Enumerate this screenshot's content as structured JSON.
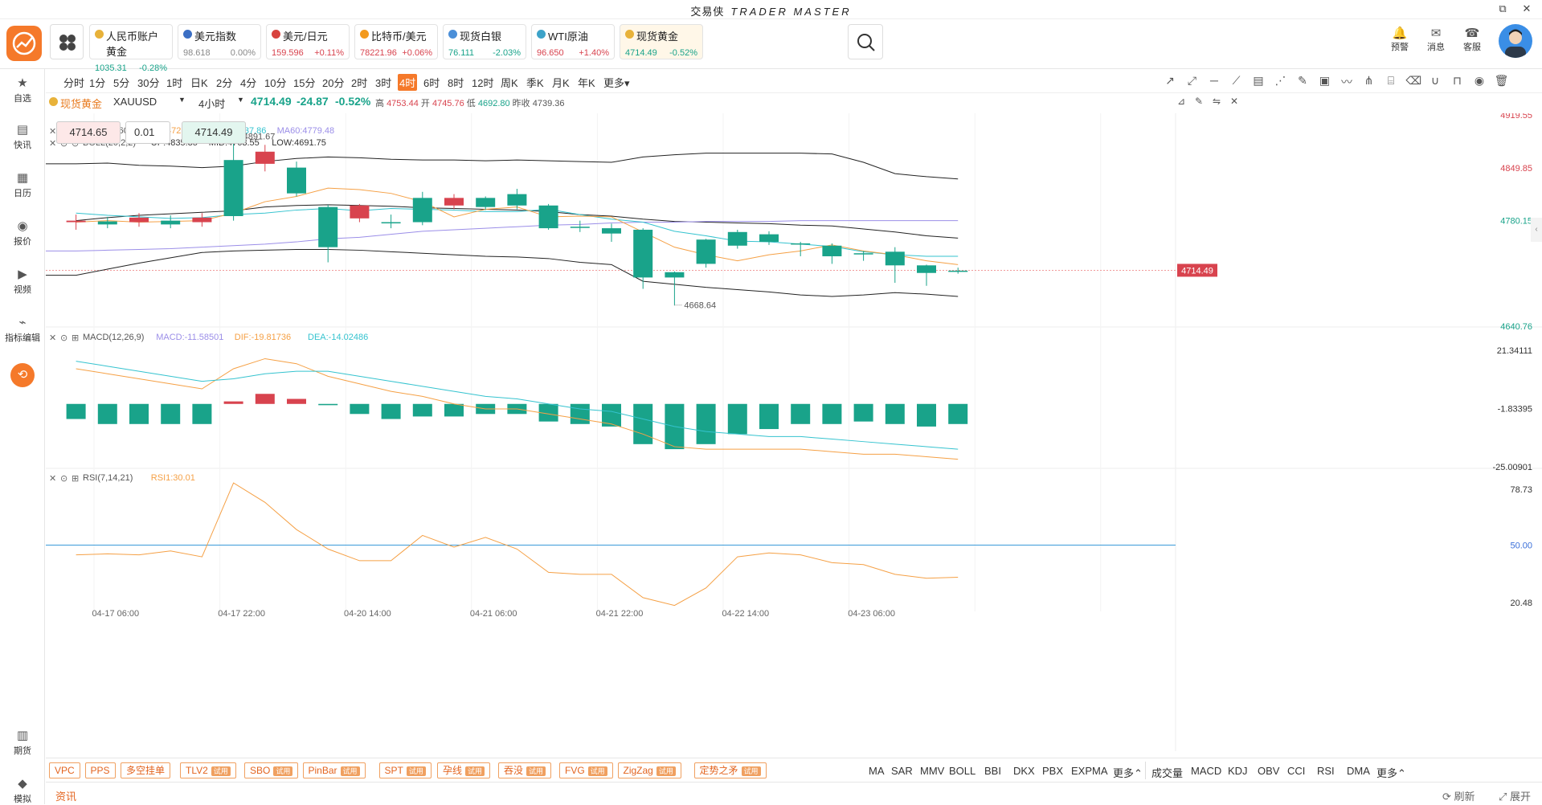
{
  "app": {
    "title": "交易侠",
    "brand": "TRADER MASTER"
  },
  "window": {
    "restore": "⧉",
    "close": "✕"
  },
  "tickers": [
    {
      "name": "人民币账户黄金",
      "price": "1035.31",
      "change": "-0.28%",
      "color": "#e8b23a",
      "dir": "down"
    },
    {
      "name": "美元指数",
      "price": "98.618",
      "change": "0.00%",
      "color": "#3b6fc4",
      "dir": "flat"
    },
    {
      "name": "美元/日元",
      "price": "159.596",
      "change": "+0.11%",
      "color": "#d8433f",
      "dir": "up"
    },
    {
      "name": "比特币/美元",
      "price": "78221.96",
      "change": "+0.06%",
      "color": "#f39a1e",
      "dir": "up"
    },
    {
      "name": "现货白银",
      "price": "76.111",
      "change": "-2.03%",
      "color": "#4b8fd8",
      "dir": "down"
    },
    {
      "name": "WTI原油",
      "price": "96.650",
      "change": "+1.40%",
      "color": "#3da3c9",
      "dir": "up"
    },
    {
      "name": "现货黄金",
      "price": "4714.49",
      "change": "-0.52%",
      "color": "#e8b23a",
      "dir": "down"
    }
  ],
  "right_tools": [
    {
      "label": "预警",
      "icon": "🔔"
    },
    {
      "label": "消息",
      "icon": "✉"
    },
    {
      "label": "客服",
      "icon": "☎"
    }
  ],
  "left_nav": [
    {
      "label": "自选",
      "icon": "★"
    },
    {
      "label": "快讯",
      "icon": "▤"
    },
    {
      "label": "日历",
      "icon": "▦"
    },
    {
      "label": "报价",
      "icon": "◉"
    },
    {
      "label": "视频",
      "icon": "▶"
    },
    {
      "label": "指标编辑",
      "icon": "⌁"
    },
    {
      "label": "复盘",
      "icon": "⟲"
    },
    {
      "label": "期货",
      "icon": "▥"
    },
    {
      "label": "模拟",
      "icon": "◆"
    }
  ],
  "timeframes": [
    "分时",
    "1分",
    "5分",
    "30分",
    "1时",
    "日K",
    "2分",
    "4分",
    "10分",
    "15分",
    "20分",
    "2时",
    "3时",
    "4时",
    "6时",
    "8时",
    "12时",
    "周K",
    "季K",
    "月K",
    "年K",
    "更多▾"
  ],
  "active_timeframe": "4时",
  "symbol": {
    "name": "现货黄金",
    "code": "XAUUSD",
    "period": "4小时",
    "price": "4714.49",
    "change": "-24.87",
    "pct": "-0.52%",
    "hl": "高",
    "high": "4753.44",
    "ol": "开",
    "open": "4745.76",
    "ll": "低",
    "low": "4692.80",
    "pl": "昨收",
    "prev": "4739.36"
  },
  "order": {
    "bid": "4714.65",
    "lot": "0.01",
    "ask": "4714.49"
  },
  "ind_main": {
    "ma": "MA(5,10,60)",
    "ma5": "MA5:4725.54",
    "ma10": "MA10:4737.86",
    "ma60": "MA60:4779.48",
    "boll": "BOLL(20,2,2)",
    "up": "UP:4835.35",
    "mid": "MID:4763.55",
    "low": "LOW:4691.75"
  },
  "ind_macd": {
    "name": "MACD(12,26,9)",
    "macd": "MACD:-11.58501",
    "dif": "DIF:-19.81736",
    "dea": "DEA:-14.02486"
  },
  "ind_rsi": {
    "name": "RSI(7,14,21)",
    "rsi1": "RSI1:30.01"
  },
  "annotations": {
    "hi": "4891.67",
    "lo": "4668.64"
  },
  "price_axis": [
    "4919.55",
    "4849.85",
    "4780.15",
    "4640.76"
  ],
  "macd_axis": [
    "21.34111",
    "-1.83395",
    "-25.00901"
  ],
  "rsi_axis": [
    "78.73",
    "50.00",
    "20.48"
  ],
  "current_price_label": "4714.49",
  "colors": {
    "up": "#d8434e",
    "down": "#19a38a",
    "ma5": "#f5a045",
    "ma10": "#35c3cf",
    "ma60": "#9b8ee8",
    "boll": "#222222",
    "accent": "#f5792a"
  },
  "x_labels": [
    "04-17 06:00",
    "04-17 22:00",
    "04-20 14:00",
    "04-21 06:00",
    "04-21 22:00",
    "04-22 14:00",
    "04-23 06:00"
  ],
  "candles": [
    [
      4778,
      4780,
      4768,
      4788
    ],
    [
      4779,
      4775,
      4770,
      4785
    ],
    [
      4778,
      4784,
      4772,
      4790
    ],
    [
      4780,
      4775,
      4770,
      4787
    ],
    [
      4778,
      4784,
      4772,
      4790
    ],
    [
      4860,
      4786,
      4780,
      4892
    ],
    [
      4855,
      4871,
      4845,
      4880
    ],
    [
      4850,
      4816,
      4812,
      4858
    ],
    [
      4798,
      4745,
      4725,
      4801
    ],
    [
      4783,
      4800,
      4778,
      4802
    ],
    [
      4778,
      4778,
      4770,
      4788
    ],
    [
      4810,
      4778,
      4774,
      4818
    ],
    [
      4800,
      4810,
      4795,
      4815
    ],
    [
      4810,
      4798,
      4794,
      4812
    ],
    [
      4815,
      4800,
      4795,
      4822
    ],
    [
      4800,
      4770,
      4768,
      4802
    ],
    [
      4772,
      4772,
      4765,
      4780
    ],
    [
      4770,
      4763,
      4752,
      4776
    ],
    [
      4768,
      4705,
      4690,
      4770
    ],
    [
      4712,
      4705,
      4668,
      4713
    ],
    [
      4755,
      4723,
      4718,
      4756
    ],
    [
      4765,
      4747,
      4743,
      4768
    ],
    [
      4762,
      4752,
      4748,
      4766
    ],
    [
      4750,
      4750,
      4733,
      4752
    ],
    [
      4747,
      4733,
      4723,
      4750
    ],
    [
      4737,
      4737,
      4727,
      4740
    ],
    [
      4739,
      4721,
      4698,
      4745
    ],
    [
      4721,
      4711,
      4694,
      4722
    ],
    [
      4714,
      4714,
      4710,
      4718
    ]
  ],
  "ma5": [
    4778,
    4780,
    4778,
    4779,
    4780,
    4790,
    4805,
    4812,
    4823,
    4821,
    4816,
    4805,
    4785,
    4795,
    4798,
    4785,
    4786,
    4785,
    4765,
    4745,
    4735,
    4727,
    4735,
    4740,
    4748,
    4740,
    4735,
    4727,
    4722
  ],
  "ma10": [
    4790,
    4787,
    4785,
    4783,
    4784,
    4788,
    4790,
    4794,
    4796,
    4793,
    4796,
    4795,
    4794,
    4792,
    4792,
    4795,
    4788,
    4782,
    4778,
    4766,
    4760,
    4753,
    4752,
    4749,
    4746,
    4739,
    4735,
    4733,
    4733
  ],
  "ma60": [
    4740,
    4741,
    4742,
    4743,
    4745,
    4747,
    4749,
    4752,
    4756,
    4758,
    4762,
    4766,
    4768,
    4770,
    4772,
    4774,
    4775,
    4777,
    4778,
    4778,
    4779,
    4779,
    4779,
    4780,
    4780,
    4780,
    4780,
    4780,
    4780
  ],
  "boll_up": [
    4855,
    4856,
    4853,
    4852,
    4850,
    4852,
    4858,
    4862,
    4864,
    4863,
    4861,
    4860,
    4860,
    4859,
    4860,
    4859,
    4858,
    4857,
    4864,
    4867,
    4869,
    4869,
    4869,
    4869,
    4868,
    4857,
    4842,
    4838,
    4835
  ],
  "boll_mid": [
    4780,
    4784,
    4787,
    4789,
    4791,
    4793,
    4798,
    4800,
    4801,
    4800,
    4799,
    4797,
    4796,
    4795,
    4794,
    4792,
    4788,
    4786,
    4782,
    4779,
    4778,
    4777,
    4776,
    4774,
    4773,
    4769,
    4765,
    4760,
    4757
  ],
  "boll_low": [
    4708,
    4716,
    4724,
    4731,
    4738,
    4740,
    4741,
    4742,
    4742,
    4741,
    4739,
    4737,
    4735,
    4733,
    4732,
    4730,
    4725,
    4722,
    4700,
    4696,
    4692,
    4689,
    4686,
    4682,
    4680,
    4682,
    4685,
    4683,
    4680
  ],
  "macd_hist": [
    -6,
    -8,
    -8,
    -8,
    -8,
    1,
    4,
    2,
    -0.5,
    -4,
    -6,
    -5,
    -5,
    -4,
    -4,
    -7,
    -8,
    -9,
    -16,
    -18,
    -16,
    -12,
    -10,
    -8,
    -8,
    -7,
    -8,
    -9,
    -8
  ],
  "macd_dif": [
    14,
    12,
    10,
    8,
    6,
    14,
    18,
    16,
    11,
    8,
    5,
    3,
    0,
    -2,
    -2,
    -4,
    -6,
    -8,
    -12,
    -17,
    -18,
    -18,
    -18,
    -18,
    -19,
    -20,
    -20,
    -21,
    -22
  ],
  "macd_dea": [
    17,
    15,
    13,
    11,
    9,
    10,
    12,
    13,
    13,
    11,
    9,
    7,
    5,
    3,
    2,
    0,
    -2,
    -3,
    -6,
    -9,
    -11,
    -12,
    -13,
    -13,
    -14,
    -15,
    -16,
    -17,
    -18
  ],
  "rsi": [
    45,
    45.5,
    45,
    47,
    44,
    82,
    72,
    58,
    48,
    42,
    42,
    55,
    49,
    54,
    48,
    36,
    35,
    35,
    23,
    19,
    28,
    44,
    46,
    45,
    41,
    40,
    35,
    33,
    33.5
  ],
  "bottom_tags": [
    {
      "label": "VPC",
      "try": ""
    },
    {
      "label": "PPS",
      "try": ""
    },
    {
      "label": "多空挂单",
      "try": ""
    },
    {
      "label": "TLV2",
      "try": "试用"
    },
    {
      "label": "SBO",
      "try": "试用"
    },
    {
      "label": "PinBar",
      "try": "试用"
    },
    {
      "label": "SPT",
      "try": "试用"
    },
    {
      "label": "孕线",
      "try": "试用"
    },
    {
      "label": "吞没",
      "try": "试用"
    },
    {
      "label": "FVG",
      "try": "试用"
    },
    {
      "label": "ZigZag",
      "try": "试用"
    },
    {
      "label": "定势之矛",
      "try": "试用"
    }
  ],
  "main_inds": [
    "MA",
    "SAR",
    "MMV",
    "BOLL",
    "BBI",
    "DKX",
    "PBX",
    "EXPMA",
    "更多⌃"
  ],
  "sub_inds": [
    "成交量",
    "MACD",
    "KDJ",
    "OBV",
    "CCI",
    "RSI",
    "DMA",
    "更多⌃"
  ],
  "news": {
    "label": "资讯",
    "refresh": "刷新",
    "collapse": "展开"
  }
}
